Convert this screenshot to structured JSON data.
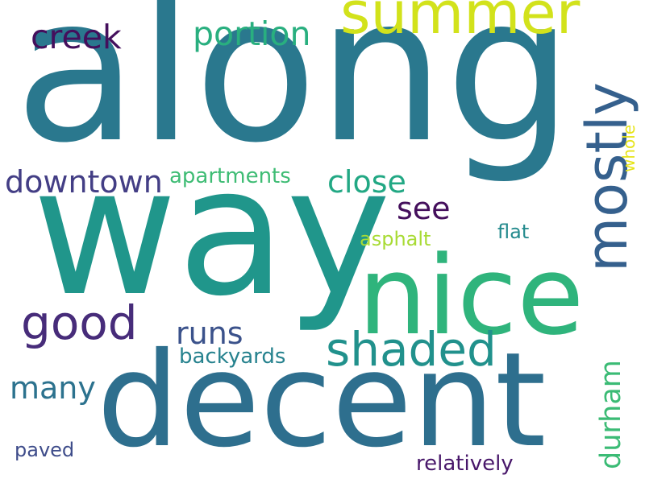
{
  "words": [
    {
      "id": "along",
      "text": "along",
      "color": "#2a788e"
    },
    {
      "id": "way",
      "text": "way",
      "color": "#20968b"
    },
    {
      "id": "nice",
      "text": "nice",
      "color": "#2fb47c"
    },
    {
      "id": "decent",
      "text": "decent",
      "color": "#2e6f8e"
    },
    {
      "id": "summer",
      "text": "summer",
      "color": "#d2e21b"
    },
    {
      "id": "mostly",
      "text": "mostly",
      "color": "#35608d"
    },
    {
      "id": "good",
      "text": "good",
      "color": "#472c7a"
    },
    {
      "id": "shaded",
      "text": "shaded",
      "color": "#21918c"
    },
    {
      "id": "creek",
      "text": "creek",
      "color": "#440f5c"
    },
    {
      "id": "portion",
      "text": "portion",
      "color": "#29af7f"
    },
    {
      "id": "downtown",
      "text": "downtown",
      "color": "#433e85"
    },
    {
      "id": "close",
      "text": "close",
      "color": "#22a884"
    },
    {
      "id": "see",
      "text": "see",
      "color": "#440f5c"
    },
    {
      "id": "runs",
      "text": "runs",
      "color": "#3b528b"
    },
    {
      "id": "many",
      "text": "many",
      "color": "#2c728e"
    },
    {
      "id": "durham",
      "text": "durham",
      "color": "#3bbb75"
    },
    {
      "id": "apartments",
      "text": "apartments",
      "color": "#3ebc74"
    },
    {
      "id": "backyards",
      "text": "backyards",
      "color": "#26828e"
    },
    {
      "id": "relatively",
      "text": "relatively",
      "color": "#48176a"
    },
    {
      "id": "asphalt",
      "text": "asphalt",
      "color": "#a8db34"
    },
    {
      "id": "flat",
      "text": "flat",
      "color": "#238a8d"
    },
    {
      "id": "paved",
      "text": "paved",
      "color": "#3e4c8a"
    },
    {
      "id": "whole",
      "text": "whole",
      "color": "#e6e419"
    }
  ]
}
